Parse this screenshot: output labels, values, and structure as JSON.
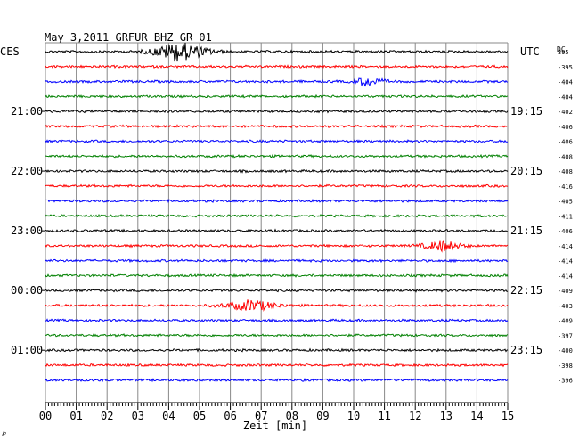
{
  "chart_data": {
    "type": "line",
    "title": "May 3,2011   GRFUR BHZ GR 01",
    "left_header": "CES",
    "right_header": "UTC",
    "dc_header": "DC",
    "xlabel": "Zeit [min]",
    "xlim": [
      0,
      15
    ],
    "x_ticks": [
      "00",
      "01",
      "02",
      "03",
      "04",
      "05",
      "06",
      "07",
      "08",
      "09",
      "10",
      "11",
      "12",
      "13",
      "14",
      "15"
    ],
    "left_time_labels": [
      {
        "row": 4,
        "label": "21:00"
      },
      {
        "row": 8,
        "label": "22:00"
      },
      {
        "row": 12,
        "label": "23:00"
      },
      {
        "row": 16,
        "label": "00:00"
      },
      {
        "row": 20,
        "label": "01:00"
      }
    ],
    "right_time_labels": [
      {
        "row": 4,
        "label": "19:15"
      },
      {
        "row": 8,
        "label": "20:15"
      },
      {
        "row": 12,
        "label": "21:15"
      },
      {
        "row": 16,
        "label": "22:15"
      },
      {
        "row": 20,
        "label": "23:15"
      }
    ],
    "dc_offsets": [
      "395",
      "-395",
      "-404",
      "-404",
      "-402",
      "-406",
      "-406",
      "-408",
      "-408",
      "-416",
      "-405",
      "-411",
      "-406",
      "-414",
      "-414",
      "-414",
      "-409",
      "-403",
      "-409",
      "-397",
      "-400",
      "-398",
      "-396"
    ],
    "trace_colors": [
      "#000000",
      "#ff0000",
      "#0000ff",
      "#008000"
    ],
    "events": [
      {
        "row": 0,
        "start_min": 2.6,
        "end_min": 6.3,
        "peak_min": 4.3,
        "amplitude": 1.0
      },
      {
        "row": 2,
        "start_min": 9.6,
        "end_min": 11.6,
        "peak_min": 10.4,
        "amplitude": 0.45
      },
      {
        "row": 13,
        "start_min": 11.5,
        "end_min": 14.2,
        "peak_min": 12.9,
        "amplitude": 0.5
      },
      {
        "row": 17,
        "start_min": 4.8,
        "end_min": 8.4,
        "peak_min": 6.7,
        "amplitude": 0.55
      }
    ],
    "grid": true,
    "bottom_left_mark": "℘"
  }
}
